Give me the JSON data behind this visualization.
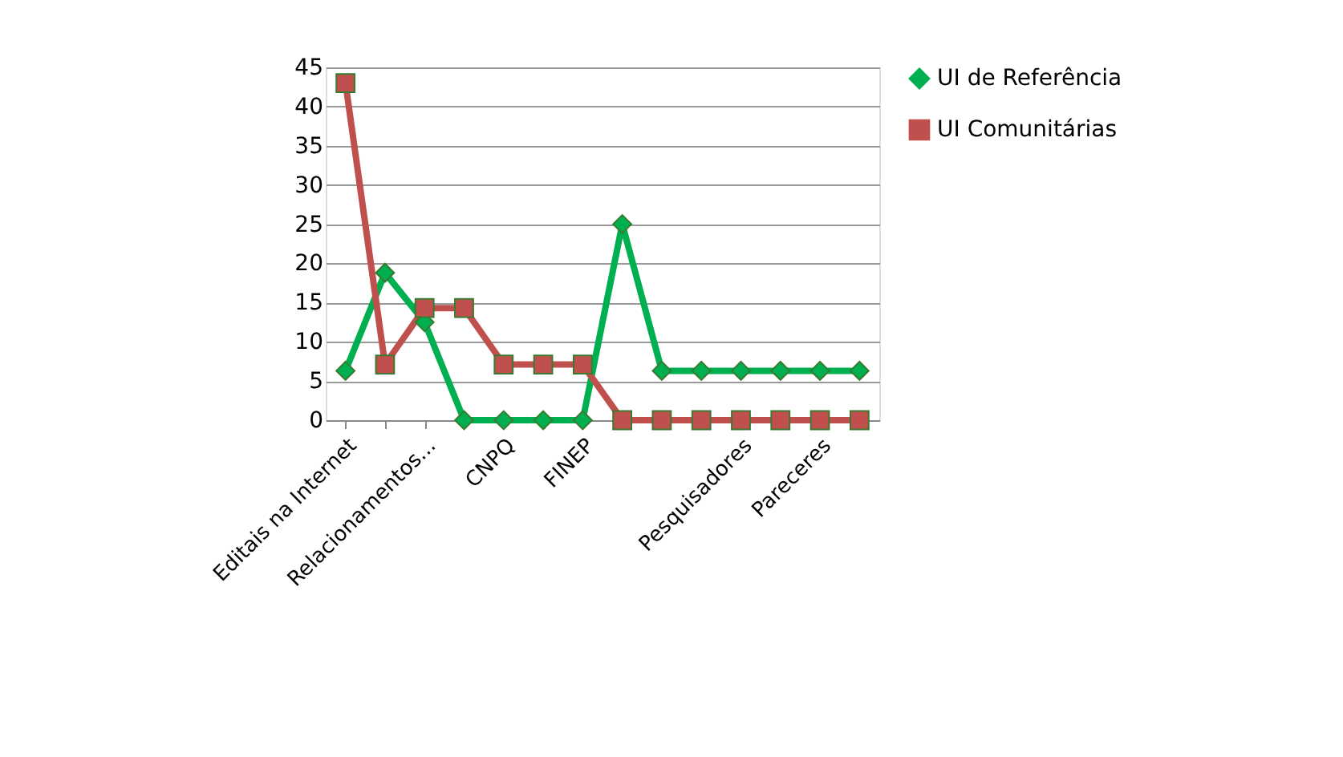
{
  "chart_data": {
    "type": "line",
    "categories": [
      "Editais na Internet",
      null,
      "Relacionamentos...",
      null,
      "CNPQ",
      null,
      "FINEP",
      null,
      null,
      null,
      "Pesquisadores",
      null,
      "Pareceres",
      null
    ],
    "series": [
      {
        "name": "UI de Referência",
        "color": "#00b050",
        "marker": "diamond",
        "values": [
          6.3,
          18.8,
          12.5,
          0,
          0,
          0,
          0,
          25,
          6.3,
          6.3,
          6.3,
          6.3,
          6.3,
          6.3
        ]
      },
      {
        "name": "UI Comunitárias",
        "color": "#c0504d",
        "marker": "square",
        "values": [
          43,
          7.1,
          14.3,
          14.3,
          7.1,
          7.1,
          7.1,
          0,
          0,
          0,
          0,
          0,
          0,
          0
        ]
      }
    ],
    "ylim": [
      0,
      45
    ],
    "yticks": [
      0,
      5,
      10,
      15,
      20,
      25,
      30,
      35,
      40,
      45
    ],
    "grid": "y",
    "legend": "right"
  }
}
